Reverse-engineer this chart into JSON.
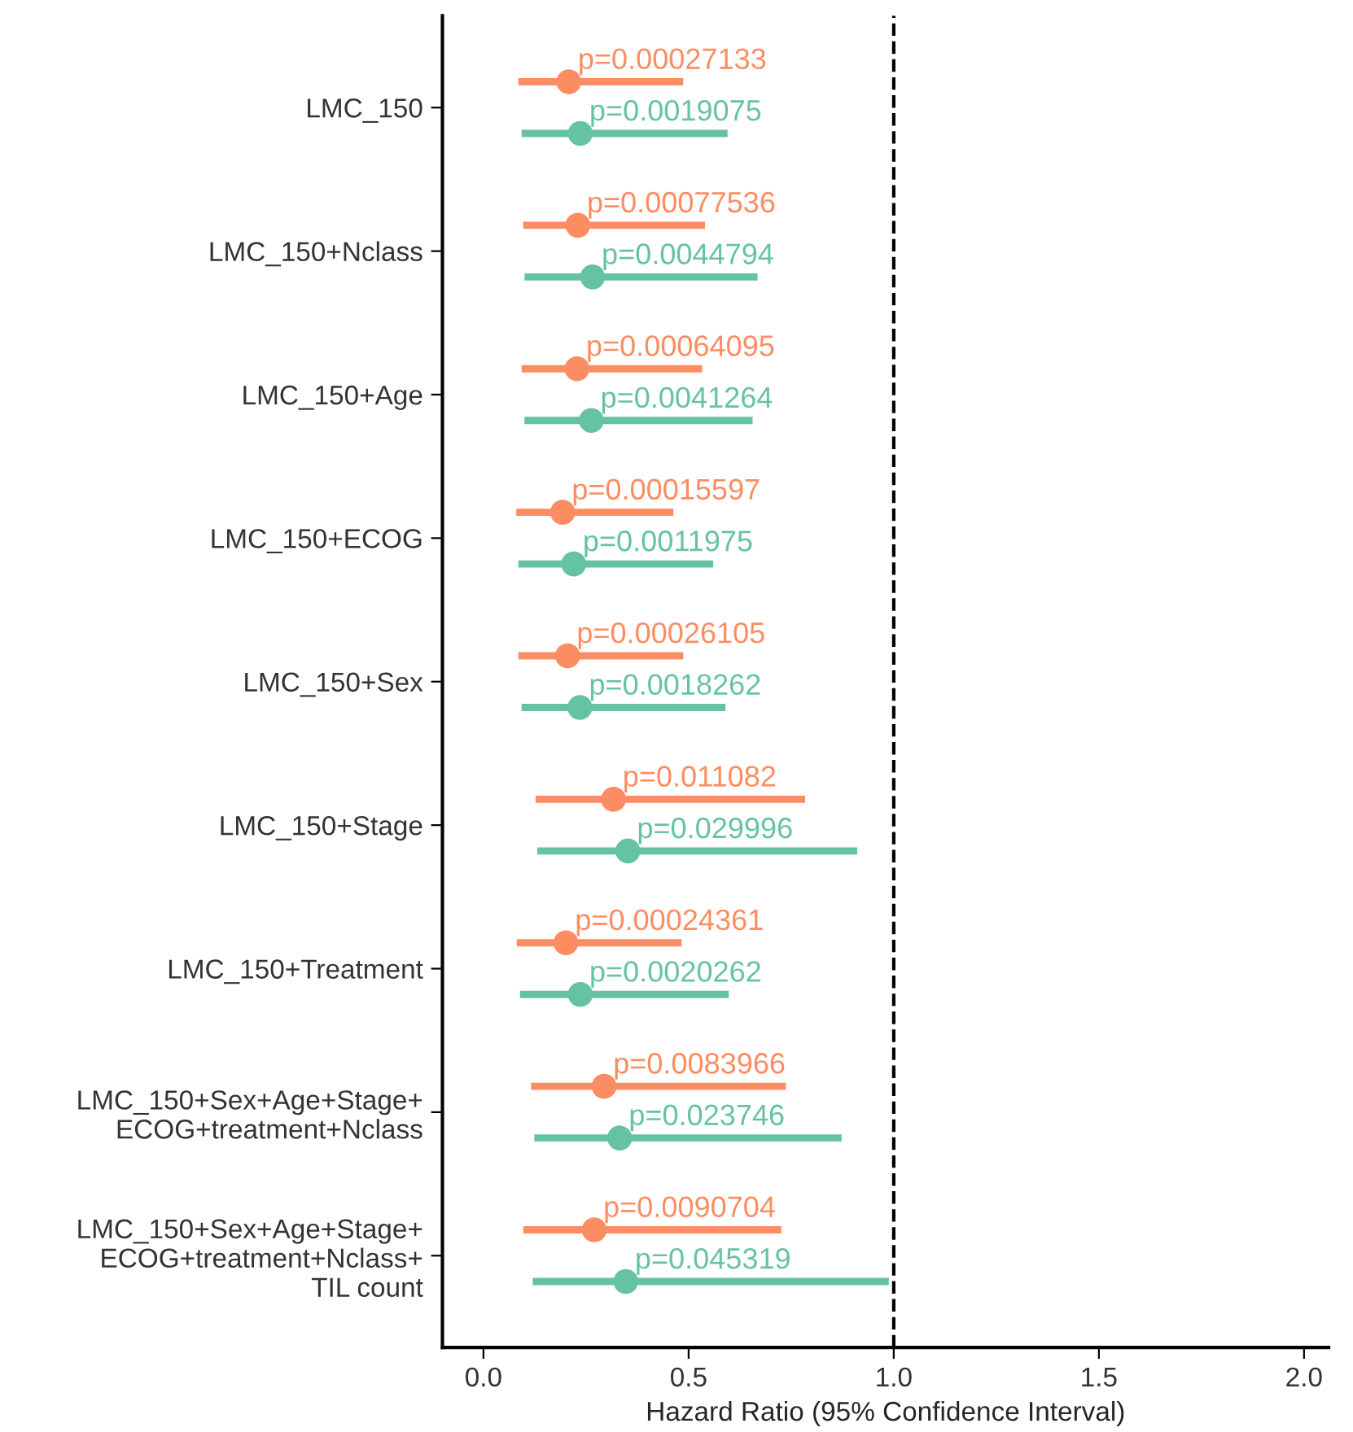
{
  "chart_data": {
    "type": "scatter",
    "orientation": "horizontal",
    "xlabel": "Hazard Ratio (95% Confidence Interval)",
    "categories": [
      "LMC_150",
      "LMC_150+Nclass",
      "LMC_150+Age",
      "LMC_150+ECOG",
      "LMC_150+Sex",
      "LMC_150+Stage",
      "LMC_150+Treatment",
      "LMC_150+Sex+Age+Stage+\nECOG+treatment+Nclass",
      "LMC_150+Sex+Age+Stage+\nECOG+treatment+Nclass+\nTIL count"
    ],
    "series": [
      {
        "color": "#fc8d62",
        "values": [
          0.208,
          0.23,
          0.228,
          0.193,
          0.205,
          0.317,
          0.201,
          0.294,
          0.27
        ],
        "errors": [
          [
            0.085,
            0.487
          ],
          [
            0.097,
            0.54
          ],
          [
            0.093,
            0.533
          ],
          [
            0.08,
            0.463
          ],
          [
            0.085,
            0.487
          ],
          [
            0.127,
            0.784
          ],
          [
            0.081,
            0.483
          ],
          [
            0.116,
            0.737
          ],
          [
            0.097,
            0.726
          ]
        ]
      },
      {
        "color": "#66c2a5",
        "values": [
          0.236,
          0.266,
          0.263,
          0.22,
          0.235,
          0.352,
          0.236,
          0.332,
          0.347
        ],
        "errors": [
          [
            0.093,
            0.595
          ],
          [
            0.1,
            0.668
          ],
          [
            0.1,
            0.656
          ],
          [
            0.085,
            0.56
          ],
          [
            0.093,
            0.59
          ],
          [
            0.131,
            0.911
          ],
          [
            0.089,
            0.598
          ],
          [
            0.124,
            0.873
          ],
          [
            0.12,
            0.988
          ]
        ]
      }
    ],
    "annotations": [
      "p=0.00027133",
      "p=0.0019075",
      "p=0.00077536",
      "p=0.0044794",
      "p=0.00064095",
      "p=0.0041264",
      "p=0.00015597",
      "p=0.0011975",
      "p=0.00026105",
      "p=0.0018262",
      "p=0.011082",
      "p=0.029996",
      "p=0.00024361",
      "p=0.0020262",
      "p=0.0083966",
      "p=0.023746",
      "p=0.0090704",
      "p=0.045319"
    ],
    "xlim": [
      -0.1,
      2.06
    ],
    "xticks": [
      {
        "value": 0,
        "label": "0.0"
      },
      {
        "value": 0.5,
        "label": "0.5"
      },
      {
        "value": 1,
        "label": "1.0"
      },
      {
        "value": 1.5,
        "label": "1.5"
      },
      {
        "value": 2,
        "label": "2.0"
      }
    ],
    "ref_lines": [
      {
        "axis": "x",
        "value": 1,
        "line_style": "dashed",
        "color": "#000000"
      }
    ],
    "marker": "circle",
    "grid": false,
    "legend": false
  }
}
